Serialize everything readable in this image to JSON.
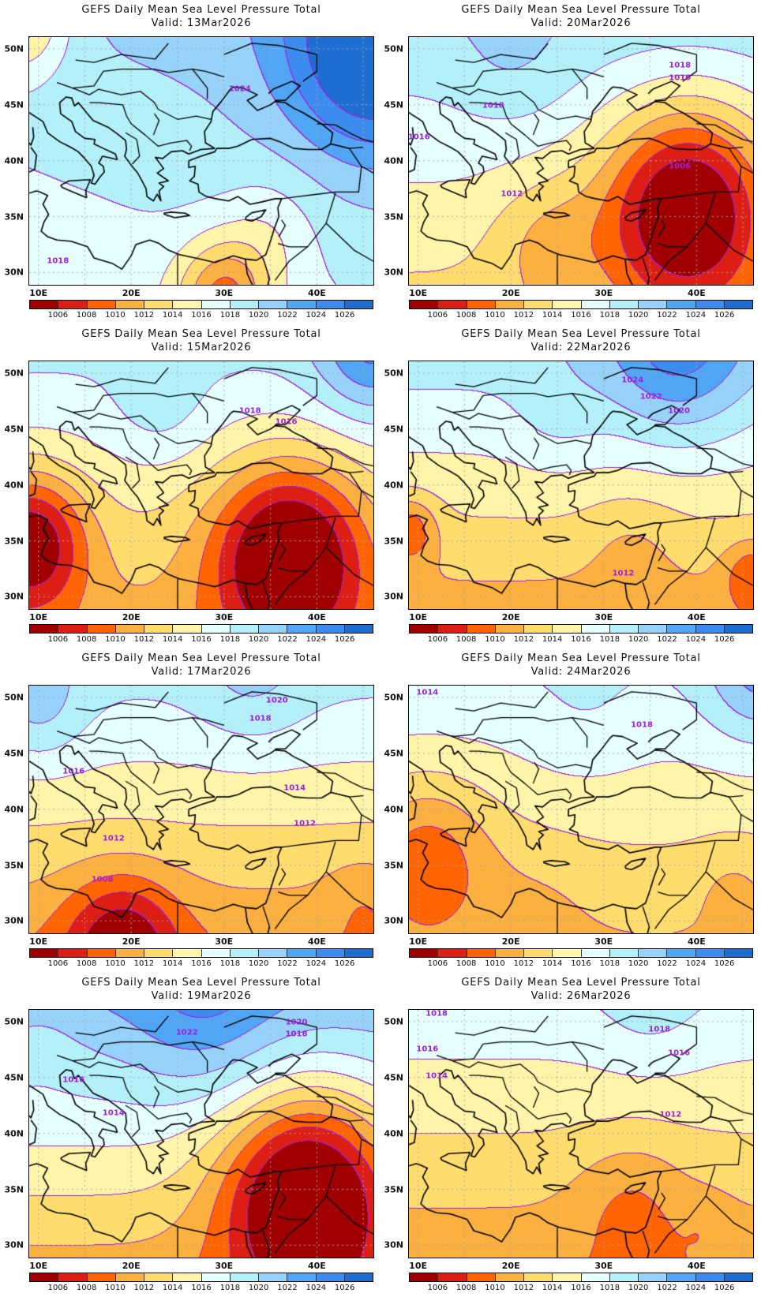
{
  "colors": [
    "#a00000",
    "#dc1e14",
    "#ff6400",
    "#fbb040",
    "#fedc6e",
    "#fff5aa",
    "#e6ffff",
    "#b4f0fa",
    "#96d2fa",
    "#50a5f5",
    "#3c8cf0",
    "#1e6ed2"
  ],
  "contour_color": "#a020e0",
  "colorbar_labels": [
    "1006",
    "1008",
    "1010",
    "1012",
    "1014",
    "1016",
    "1018",
    "1020",
    "1022",
    "1024",
    "1026"
  ],
  "lat_labels": [
    "50N",
    "45N",
    "40N",
    "35N",
    "30N"
  ],
  "lon_labels": [
    "10E",
    "20E",
    "30E",
    "40E"
  ],
  "panels": [
    {
      "title": "GEFS Daily Mean Sea Level Pressure Total",
      "valid": "Valid: 13Mar2026",
      "field": {
        "base": 1019,
        "a": 0.15,
        "b": 0.05,
        "centers": [
          [
            46,
            50,
            9,
            9
          ],
          [
            30,
            28,
            -8,
            5
          ],
          [
            8,
            53,
            -7,
            5
          ],
          [
            35,
            34,
            -2,
            5
          ]
        ]
      },
      "contour_labels": [
        {
          "text": "1024",
          "lon": 31.7,
          "lat": 46.4
        },
        {
          "text": "1018",
          "lon": 12.1,
          "lat": 31.0
        }
      ]
    },
    {
      "title": "GEFS Daily Mean Sea Level Pressure Total",
      "valid": "Valid: 15Mar2026",
      "field": {
        "base": 1015,
        "a": 0.3,
        "b": 0,
        "centers": [
          [
            9,
            35,
            -10,
            6
          ],
          [
            37,
            34,
            -12,
            8
          ],
          [
            46,
            52,
            6,
            6
          ],
          [
            23,
            47,
            2,
            5
          ]
        ]
      },
      "contour_labels": [
        {
          "text": "1018",
          "lon": 32.8,
          "lat": 46.6
        },
        {
          "text": "1016",
          "lon": 36.7,
          "lat": 45.6
        }
      ]
    },
    {
      "title": "GEFS Daily Mean Sea Level Pressure Total",
      "valid": "Valid: 17Mar2026",
      "field": {
        "base": 1014.5,
        "a": 0.35,
        "b": 0,
        "centers": [
          [
            19,
            28,
            -7,
            6
          ],
          [
            10,
            49,
            3,
            5
          ],
          [
            33,
            51,
            2,
            6
          ],
          [
            45,
            32,
            -1.5,
            4
          ]
        ]
      },
      "contour_labels": [
        {
          "text": "1020",
          "lon": 35.7,
          "lat": 49.7
        },
        {
          "text": "1018",
          "lon": 33.9,
          "lat": 48.1
        },
        {
          "text": "1016",
          "lon": 13.8,
          "lat": 43.4
        },
        {
          "text": "1014",
          "lon": 37.6,
          "lat": 41.9
        },
        {
          "text": "1012",
          "lon": 38.7,
          "lat": 38.7
        },
        {
          "text": "1012",
          "lon": 18.1,
          "lat": 37.4
        },
        {
          "text": "1008",
          "lon": 16.9,
          "lat": 33.7
        }
      ]
    },
    {
      "title": "GEFS Daily Mean Sea Level Pressure Total",
      "valid": "Valid: 19Mar2026",
      "field": {
        "base": 1016.5,
        "a": 0.45,
        "b": 0,
        "centers": [
          [
            39,
            35,
            -13,
            9
          ],
          [
            28,
            51,
            3,
            8
          ],
          [
            10,
            48,
            -1,
            4
          ]
        ]
      },
      "contour_labels": [
        {
          "text": "1022",
          "lon": 26.0,
          "lat": 49.0
        },
        {
          "text": "1020",
          "lon": 37.8,
          "lat": 49.9
        },
        {
          "text": "1018",
          "lon": 37.8,
          "lat": 48.9
        },
        {
          "text": "1016",
          "lon": 13.8,
          "lat": 44.8
        },
        {
          "text": "1014",
          "lon": 18.1,
          "lat": 41.8
        }
      ]
    },
    {
      "title": "GEFS Daily Mean Sea Level Pressure Total",
      "valid": "Valid: 20Mar2026",
      "field": {
        "base": 1016.5,
        "a": 0.25,
        "b": 0,
        "centers": [
          [
            39,
            36,
            -13,
            9
          ],
          [
            24,
            33,
            -3,
            6
          ],
          [
            20,
            49,
            1.5,
            6
          ]
        ]
      },
      "contour_labels": [
        {
          "text": "1018",
          "lon": 38.2,
          "lat": 48.5
        },
        {
          "text": "1016",
          "lon": 38.2,
          "lat": 47.4
        },
        {
          "text": "1018",
          "lon": 18.1,
          "lat": 44.9
        },
        {
          "text": "1016",
          "lon": 10.1,
          "lat": 42.1
        },
        {
          "text": "1012",
          "lon": 20.1,
          "lat": 37.0
        },
        {
          "text": "1006",
          "lon": 38.2,
          "lat": 39.5
        }
      ]
    },
    {
      "title": "GEFS Daily Mean Sea Level Pressure Total",
      "valid": "Valid: 22Mar2026",
      "field": {
        "base": 1015,
        "a": 0.35,
        "b": 0,
        "centers": [
          [
            38,
            52,
            6,
            8
          ],
          [
            9,
            36,
            -5,
            3
          ],
          [
            46,
            32,
            -4,
            3
          ],
          [
            33,
            35,
            -1.5,
            5
          ],
          [
            25,
            46,
            1.5,
            5
          ]
        ]
      },
      "contour_labels": [
        {
          "text": "1024",
          "lon": 33.1,
          "lat": 49.4
        },
        {
          "text": "1022",
          "lon": 35.1,
          "lat": 47.9
        },
        {
          "text": "1020",
          "lon": 38.1,
          "lat": 46.6
        },
        {
          "text": "1012",
          "lon": 32.1,
          "lat": 32.1
        }
      ]
    },
    {
      "title": "GEFS Daily Mean Sea Level Pressure Total",
      "valid": "Valid: 24Mar2026",
      "field": {
        "base": 1014.8,
        "a": 0.25,
        "b": 0,
        "centers": [
          [
            11,
            36,
            -5,
            7
          ],
          [
            47,
            52,
            5,
            6
          ],
          [
            23,
            32,
            -1,
            6
          ],
          [
            44,
            33,
            -1.5,
            4
          ],
          [
            28,
            48,
            1,
            6
          ]
        ]
      },
      "contour_labels": [
        {
          "text": "1014",
          "lon": 11.0,
          "lat": 50.4
        },
        {
          "text": "1018",
          "lon": 34.1,
          "lat": 47.5
        }
      ]
    },
    {
      "title": "GEFS Daily Mean Sea Level Pressure Total",
      "valid": "Valid: 26Mar2026",
      "field": {
        "base": 1014,
        "a": 0.3,
        "b": 0,
        "centers": [
          [
            33,
            34,
            -2.5,
            6
          ],
          [
            41,
            32,
            -1,
            3
          ],
          [
            35,
            51,
            1.5,
            6
          ],
          [
            18,
            37,
            -0.5,
            1.5
          ]
        ]
      },
      "contour_labels": [
        {
          "text": "1018",
          "lon": 12.0,
          "lat": 50.7
        },
        {
          "text": "1018",
          "lon": 36.0,
          "lat": 49.3
        },
        {
          "text": "1016",
          "lon": 11.0,
          "lat": 47.5
        },
        {
          "text": "1016",
          "lon": 38.1,
          "lat": 47.2
        },
        {
          "text": "1014",
          "lon": 12.0,
          "lat": 45.1
        },
        {
          "text": "1012",
          "lon": 37.2,
          "lat": 41.7
        }
      ]
    }
  ]
}
